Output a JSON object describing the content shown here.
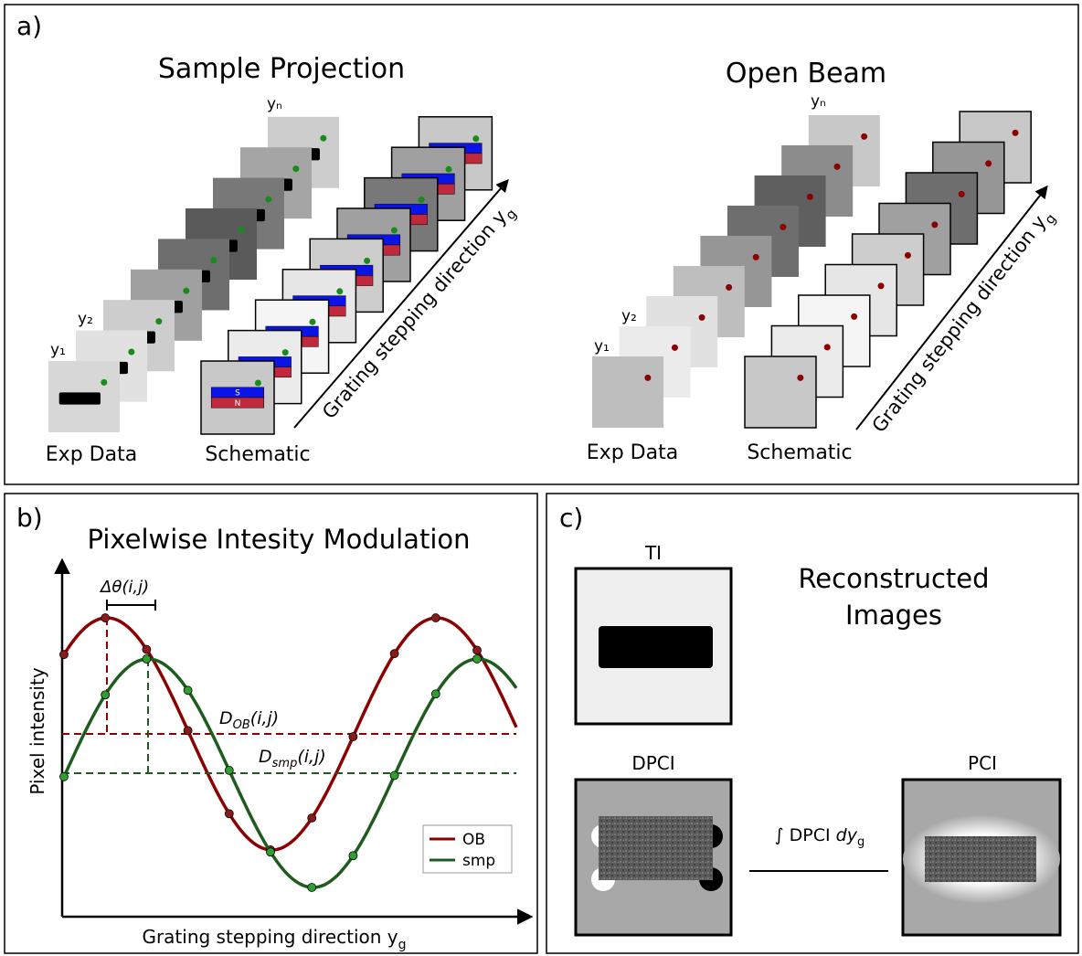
{
  "panel_a": {
    "label": "a)",
    "sample": {
      "title": "Sample Projection",
      "frame_labels": [
        "y₁",
        "y₂",
        "yₙ"
      ],
      "exp_label": "Exp Data",
      "schematic_label": "Schematic",
      "magnet": [
        "S",
        "N"
      ],
      "arrow_label": {
        "text": "Grating stepping direction y",
        "sub": "g"
      }
    },
    "open_beam": {
      "title": "Open Beam",
      "frame_labels": [
        "y₁",
        "y₂",
        "yₙ"
      ],
      "exp_label": "Exp Data",
      "schematic_label": "Schematic",
      "arrow_label": {
        "text": "Grating stepping direction y",
        "sub": "g"
      }
    }
  },
  "panel_b": {
    "label": "b)",
    "title": "Pixelwise Intesity Modulation",
    "y_axis": "Pixel intensity",
    "x_axis": {
      "text": "Grating stepping direction y",
      "sub": "g"
    },
    "phase_label": "Δθ(i,j)",
    "d_ob": {
      "text": "D",
      "sub": "OB",
      "suffix": "(i,j)"
    },
    "d_smp": {
      "text": "D",
      "sub": "smp",
      "suffix": "(i,j)"
    },
    "legend": [
      "OB",
      "smp"
    ]
  },
  "panel_c": {
    "label": "c)",
    "ti": "TI",
    "title": [
      "Reconstructed",
      "Images"
    ],
    "dpci": "DPCI",
    "pci": "PCI",
    "integral": {
      "text": "∫ DPCI ",
      "italic": "dy",
      "sub": "g"
    }
  }
}
